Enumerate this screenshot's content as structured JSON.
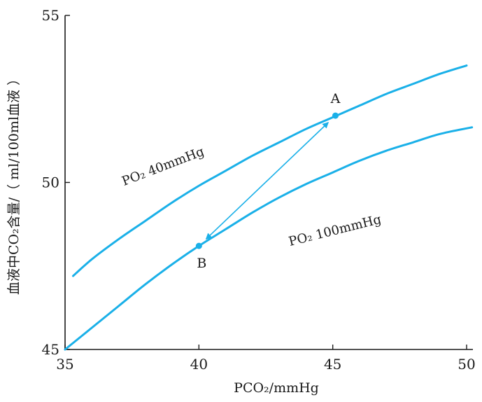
{
  "chart_data": {
    "type": "line",
    "xlabel": "PCO₂/mmHg",
    "ylabel": "血液中CO₂含量/（ ml/100ml血液 ）",
    "xlim": [
      35,
      50
    ],
    "ylim": [
      45,
      55
    ],
    "xticks": [
      35,
      40,
      45,
      50
    ],
    "yticks": [
      45,
      50,
      55
    ],
    "xtick_labels": [
      "35",
      "40",
      "45",
      "50"
    ],
    "ytick_labels": [
      "45",
      "50",
      "55"
    ],
    "grid": false,
    "line_color": "#1ab0e8",
    "series": [
      {
        "name": "PO₂ 40mmHg",
        "x": [
          35.3,
          36,
          37,
          38,
          39,
          40,
          41,
          42,
          43,
          44,
          45,
          46,
          47,
          48,
          49,
          50
        ],
        "y": [
          47.2,
          47.7,
          48.3,
          48.85,
          49.4,
          49.9,
          50.35,
          50.8,
          51.2,
          51.6,
          51.95,
          52.3,
          52.65,
          52.95,
          53.25,
          53.5
        ]
      },
      {
        "name": "PO₂ 100mmHg",
        "x": [
          35,
          36,
          37,
          38,
          39,
          40,
          41,
          42,
          43,
          44,
          45,
          46,
          47,
          48,
          49,
          50.2
        ],
        "y": [
          45.0,
          45.65,
          46.3,
          46.95,
          47.55,
          48.1,
          48.6,
          49.1,
          49.55,
          49.95,
          50.3,
          50.65,
          50.95,
          51.2,
          51.45,
          51.65
        ]
      }
    ],
    "points": [
      {
        "label": "A",
        "x": 45.1,
        "y": 52.0
      },
      {
        "label": "B",
        "x": 40.0,
        "y": 48.1
      }
    ],
    "arrows": [
      {
        "from": "A",
        "to": "B",
        "double_headed": true
      }
    ]
  }
}
